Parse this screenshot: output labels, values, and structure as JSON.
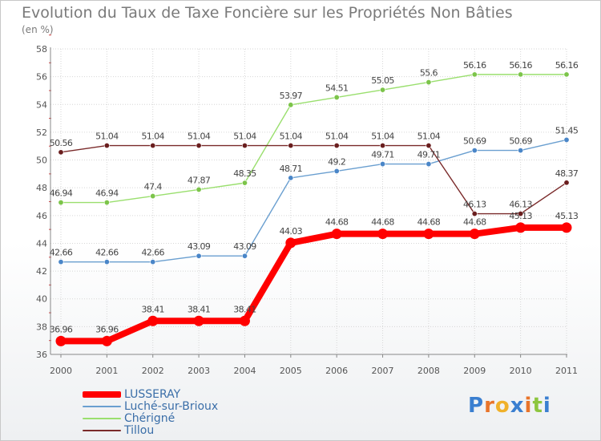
{
  "title": "Evolution du Taux de Taxe Foncière sur les Propriétés Non Bâties",
  "unit_label": "(en %)",
  "brand": {
    "text": "Proxiti",
    "letters": [
      "P",
      "r",
      "o",
      "x",
      "i",
      "t",
      "i"
    ],
    "letter_colors": [
      "#3a7fd0",
      "#e8742a",
      "#f0b12a",
      "#3a7fd0",
      "#e8742a",
      "#8dc63f",
      "#3a7fd0"
    ]
  },
  "chart_data": {
    "type": "line",
    "x": [
      "2000",
      "2001",
      "2002",
      "2003",
      "2004",
      "2005",
      "2006",
      "2007",
      "2008",
      "2009",
      "2010",
      "2011"
    ],
    "ylim": [
      36,
      58
    ],
    "yticks": [
      "36",
      "38",
      "40",
      "42",
      "44",
      "46",
      "48",
      "50",
      "52",
      "54",
      "56",
      "58"
    ],
    "grid": true,
    "legend_position": "bottom-left",
    "series": [
      {
        "name": "LUSSERAY",
        "color": "#ff0000",
        "marker_color": "#ff0000",
        "values": [
          36.96,
          36.96,
          38.41,
          38.41,
          38.41,
          44.03,
          44.68,
          44.68,
          44.68,
          44.68,
          45.13,
          45.13
        ],
        "labels": [
          "36.96",
          "36.96",
          "38.41",
          "38.41",
          "38.41",
          "44.03",
          "44.68",
          "44.68",
          "44.68",
          "44.68",
          "45.13",
          "45.13"
        ],
        "emphasis": true
      },
      {
        "name": "Luché-sur-Brioux",
        "color": "#6a9fd0",
        "marker_color": "#4a86c8",
        "values": [
          42.66,
          42.66,
          42.66,
          43.09,
          43.09,
          48.71,
          49.2,
          49.71,
          49.71,
          50.69,
          50.69,
          51.45
        ],
        "labels": [
          "42.66",
          "42.66",
          "42.66",
          "43.09",
          "43.09",
          "48.71",
          "49.2",
          "49.71",
          "49.71",
          "50.69",
          "50.69",
          "51.45"
        ]
      },
      {
        "name": "Chérigné",
        "color": "#9adf6e",
        "marker_color": "#7cc44a",
        "values": [
          46.94,
          46.94,
          47.4,
          47.87,
          48.35,
          53.97,
          54.51,
          55.05,
          55.6,
          56.16,
          56.16,
          56.16
        ],
        "labels": [
          "46.94",
          "46.94",
          "47.4",
          "47.87",
          "48.35",
          "53.97",
          "54.51",
          "55.05",
          "55.6",
          "56.16",
          "56.16",
          "56.16"
        ]
      },
      {
        "name": "Tillou",
        "color": "#7a2a2a",
        "marker_color": "#6a1e1e",
        "values": [
          50.56,
          51.04,
          51.04,
          51.04,
          51.04,
          51.04,
          51.04,
          51.04,
          51.04,
          46.13,
          46.13,
          48.37
        ],
        "labels": [
          "50.56",
          "51.04",
          "51.04",
          "51.04",
          "51.04",
          "51.04",
          "51.04",
          "51.04",
          "51.04",
          "46.13",
          "46.13",
          "48.37"
        ]
      }
    ]
  }
}
